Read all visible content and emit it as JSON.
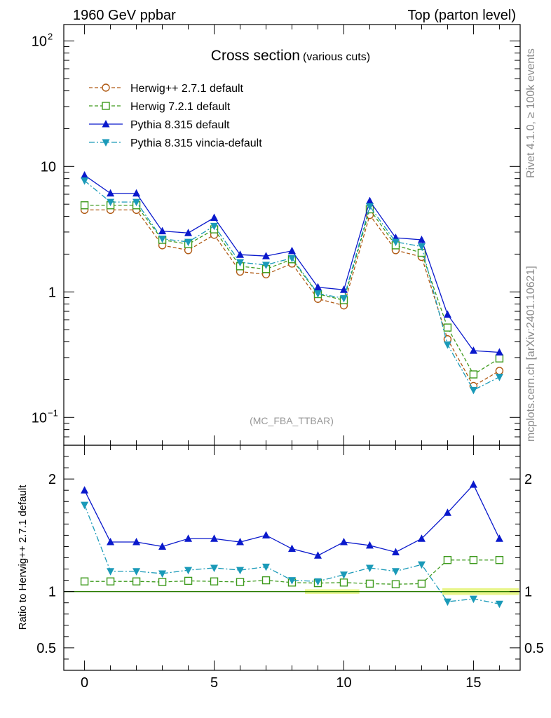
{
  "header": {
    "left": "1960 GeV ppbar",
    "right": "Top (parton level)"
  },
  "side_labels": {
    "rivet": "Rivet 4.1.0, ≥ 100k events",
    "mcplots": "mcplots.cern.ch [arXiv:2401.10621]"
  },
  "analysis_tag": "(MC_FBA_TTBAR)",
  "chart_data": [
    {
      "type": "line",
      "panel": "main",
      "title": "Cross section",
      "subtitle": "(various cuts)",
      "yscale": "log",
      "xlim": [
        -0.8,
        16.8
      ],
      "ylim": [
        0.06,
        135
      ],
      "yticks": [
        {
          "value": 0.1,
          "base": "10",
          "exp": "−1"
        },
        {
          "value": 1,
          "base": "1",
          "exp": ""
        },
        {
          "value": 10,
          "base": "10",
          "exp": ""
        },
        {
          "value": 100,
          "base": "10",
          "exp": "2"
        }
      ],
      "legend_position": "top-left",
      "x": [
        0,
        1,
        2,
        3,
        4,
        5,
        6,
        7,
        8,
        9,
        10,
        11,
        12,
        13,
        14,
        15,
        16
      ],
      "series": [
        {
          "name": "Herwig++ 2.7.1 default",
          "color": "#b05a14",
          "marker": "circle",
          "dash": "dashed",
          "values": [
            4.5,
            4.5,
            4.5,
            2.35,
            2.15,
            2.85,
            1.45,
            1.38,
            1.68,
            0.88,
            0.78,
            4.1,
            2.15,
            1.9,
            0.42,
            0.178,
            0.235
          ]
        },
        {
          "name": "Herwig 7.2.1 default",
          "color": "#3d9a1c",
          "marker": "square",
          "dash": "dashed",
          "values": [
            4.9,
            4.9,
            4.9,
            2.6,
            2.4,
            3.15,
            1.6,
            1.52,
            1.82,
            0.96,
            0.86,
            4.55,
            2.35,
            2.05,
            0.52,
            0.22,
            0.295
          ]
        },
        {
          "name": "Pythia 8.315 default",
          "color": "#0a19cc",
          "marker": "triangle-up",
          "dash": "solid",
          "values": [
            8.5,
            6.1,
            6.1,
            3.05,
            2.95,
            3.9,
            1.98,
            1.93,
            2.12,
            1.09,
            1.04,
            5.3,
            2.7,
            2.6,
            0.66,
            0.34,
            0.33
          ]
        },
        {
          "name": "Pythia 8.315 vincia-default",
          "color": "#1a9ab8",
          "marker": "triangle-down",
          "dash": "dashdot",
          "values": [
            7.7,
            5.2,
            5.2,
            2.65,
            2.5,
            3.35,
            1.72,
            1.64,
            1.86,
            0.97,
            0.89,
            4.8,
            2.5,
            2.3,
            0.38,
            0.165,
            0.21
          ]
        }
      ]
    },
    {
      "type": "line",
      "panel": "ratio",
      "ylabel": "Ratio to Herwig++ 2.7.1 default",
      "yscale": "linear",
      "xlim": [
        -0.8,
        16.8
      ],
      "ylim": [
        0.3,
        2.3
      ],
      "yticks": [
        {
          "value": 0.5,
          "label": "0.5"
        },
        {
          "value": 1,
          "label": "1"
        },
        {
          "value": 2,
          "label": "2"
        }
      ],
      "xticks": [
        {
          "value": 0,
          "label": "0"
        },
        {
          "value": 5,
          "label": "5"
        },
        {
          "value": 10,
          "label": "10"
        },
        {
          "value": 15,
          "label": "15"
        }
      ],
      "reference": {
        "value": 1,
        "color": "#000000",
        "band_color": "#e8f58a"
      },
      "x": [
        0,
        1,
        2,
        3,
        4,
        5,
        6,
        7,
        8,
        9,
        10,
        11,
        12,
        13,
        14,
        15,
        16
      ],
      "series": [
        {
          "name": "Herwig 7.2.1 default",
          "color": "#3d9a1c",
          "marker": "square",
          "dash": "dashed",
          "values": [
            1.09,
            1.09,
            1.09,
            1.085,
            1.095,
            1.09,
            1.085,
            1.1,
            1.08,
            1.075,
            1.08,
            1.07,
            1.065,
            1.07,
            1.28,
            1.28,
            1.28
          ]
        },
        {
          "name": "Pythia 8.315 default",
          "color": "#0a19cc",
          "marker": "triangle-up",
          "dash": "solid",
          "values": [
            1.9,
            1.44,
            1.44,
            1.4,
            1.47,
            1.47,
            1.44,
            1.5,
            1.38,
            1.32,
            1.44,
            1.41,
            1.35,
            1.47,
            1.7,
            1.95,
            1.47
          ]
        },
        {
          "name": "Pythia 8.315 vincia-default",
          "color": "#1a9ab8",
          "marker": "triangle-down",
          "dash": "dashdot",
          "values": [
            1.77,
            1.18,
            1.18,
            1.16,
            1.19,
            1.21,
            1.19,
            1.22,
            1.1,
            1.09,
            1.15,
            1.21,
            1.18,
            1.24,
            0.91,
            0.935,
            0.89
          ]
        }
      ]
    }
  ]
}
